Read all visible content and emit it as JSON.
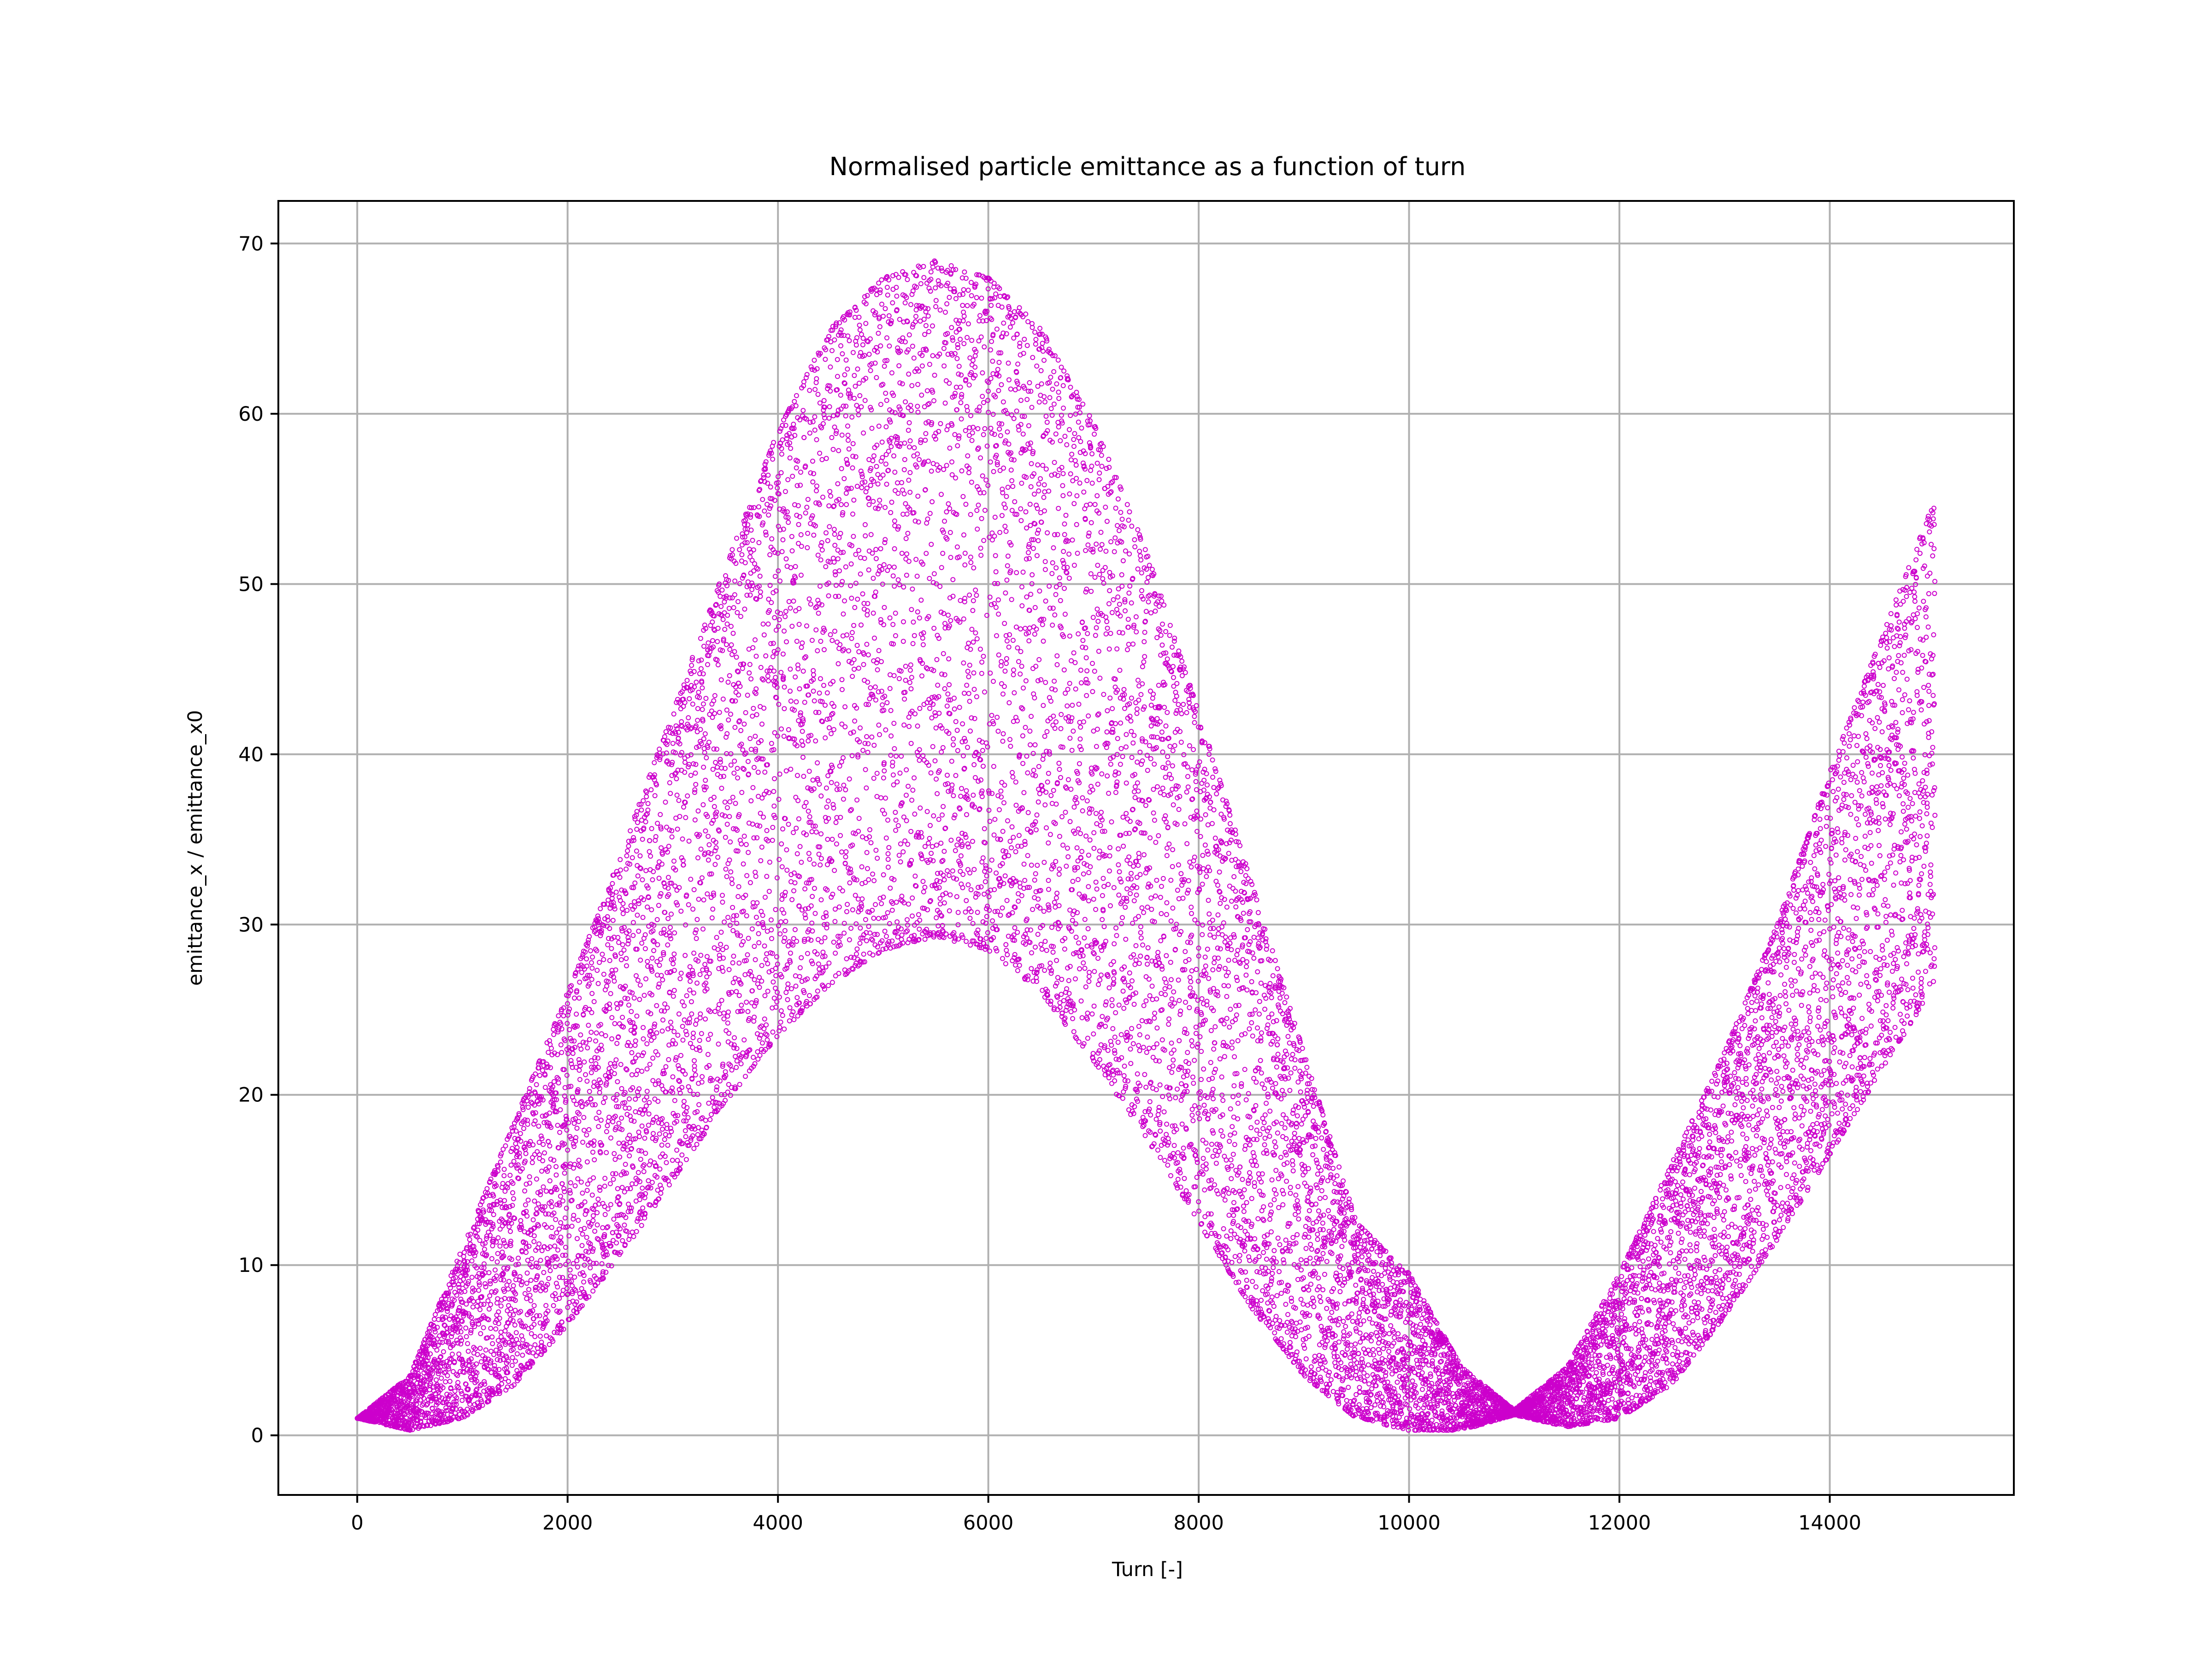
{
  "chart_data": {
    "type": "scatter",
    "title": "Normalised particle emittance as a function of turn",
    "xlabel": "Turn [-]",
    "ylabel": "emittance_x / emittance_x0",
    "xlim": [
      -750,
      15750
    ],
    "ylim": [
      -3.5,
      72.5
    ],
    "xticks": [
      0,
      2000,
      4000,
      6000,
      8000,
      10000,
      12000,
      14000
    ],
    "yticks": [
      0,
      10,
      20,
      30,
      40,
      50,
      60,
      70
    ],
    "grid": true,
    "marker_color": "#cc00cc",
    "n_points": 15000,
    "x_range": [
      0,
      15000
    ],
    "series": [
      {
        "model": "band between lower and upper envelope, filled by scattered points",
        "lower_envelope": {
          "x": [
            0,
            500,
            1000,
            1500,
            2000,
            2500,
            3000,
            3500,
            4000,
            4500,
            5000,
            5500,
            6000,
            6500,
            7000,
            7500,
            8000,
            8500,
            9000,
            9500,
            10000,
            10500,
            11000,
            11500,
            12000,
            12500,
            13000,
            13500,
            14000,
            14500,
            15000
          ],
          "y": [
            1.0,
            0.3,
            1.0,
            3.0,
            6.5,
            10.5,
            15.0,
            19.5,
            23.5,
            26.5,
            28.5,
            29.3,
            28.5,
            26.0,
            22.0,
            17.5,
            12.5,
            7.5,
            3.5,
            1.0,
            0.3,
            0.3,
            1.2,
            0.5,
            1.0,
            3.0,
            7.0,
            11.5,
            16.5,
            21.5,
            26.5
          ]
        },
        "upper_envelope": {
          "x": [
            0,
            500,
            1000,
            1500,
            2000,
            2500,
            3000,
            3500,
            4000,
            4500,
            5000,
            5500,
            6000,
            6500,
            7000,
            7500,
            8000,
            8500,
            9000,
            9500,
            10000,
            10500,
            11000,
            11500,
            12000,
            12500,
            13000,
            13500,
            14000,
            14500,
            15000
          ],
          "y": [
            1.0,
            3.5,
            11.0,
            18.5,
            26.0,
            34.0,
            42.5,
            51.0,
            59.0,
            65.0,
            68.0,
            69.0,
            68.0,
            65.0,
            59.5,
            52.0,
            42.5,
            32.5,
            22.5,
            12.5,
            9.5,
            4.0,
            1.5,
            4.0,
            9.5,
            16.0,
            22.5,
            30.0,
            39.0,
            47.0,
            55.0
          ]
        }
      }
    ]
  }
}
